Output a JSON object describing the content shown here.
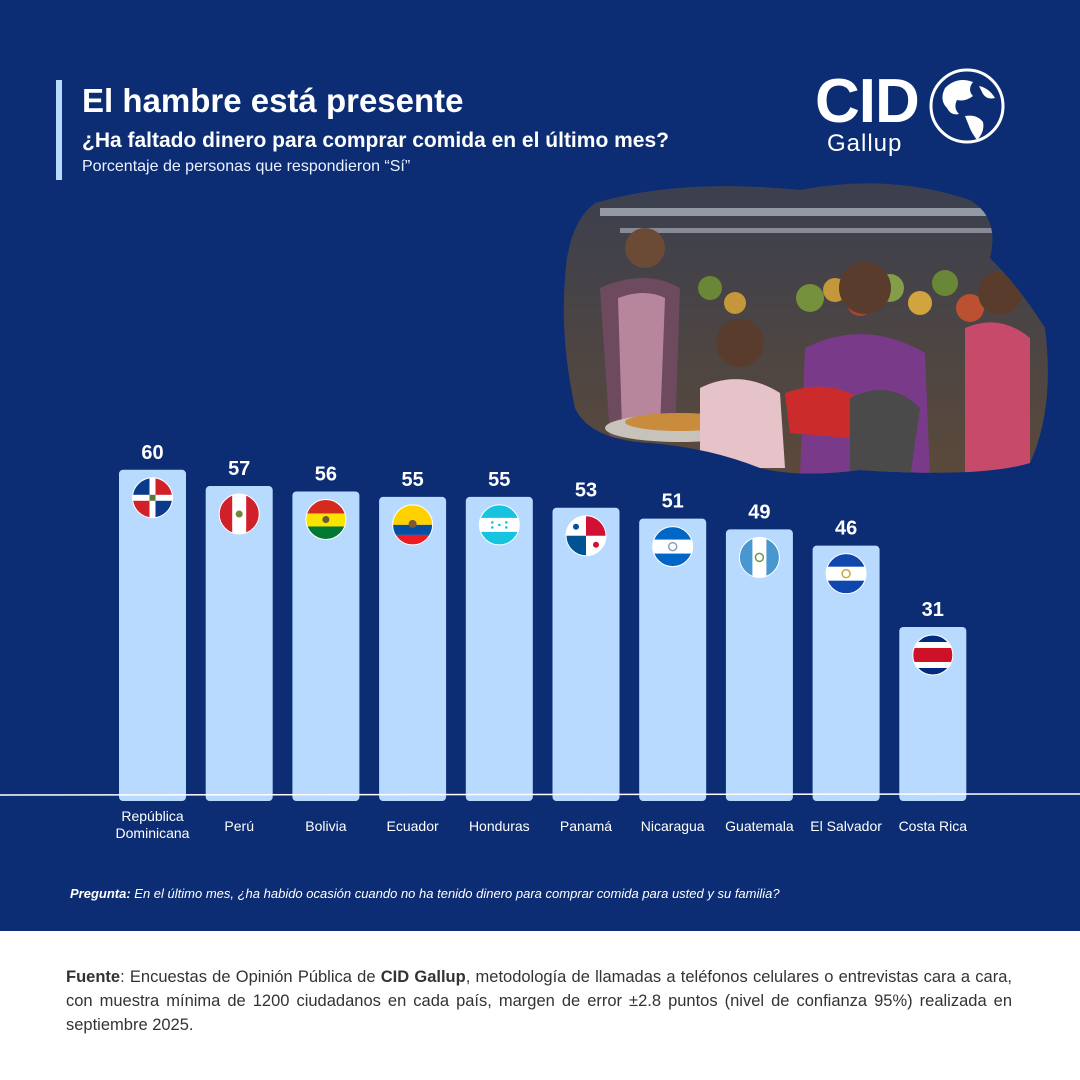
{
  "title": "El hambre está presente",
  "subtitle": "¿Ha faltado dinero para comprar comida en el último mes?",
  "note": "Porcentaje de personas que respondieron “Sí”",
  "logo": {
    "main": "CID",
    "sub": "Gallup"
  },
  "question": {
    "label": "Pregunta:",
    "text": "En el último mes, ¿ha habido ocasión cuando no ha tenido dinero para comprar comida para usted y su familia?"
  },
  "footer": {
    "label": "Fuente",
    "text_a": ": Encuestas de Opinión Pública de ",
    "brand": "CID Gallup",
    "text_b": ", metodología de llamadas a teléfonos celulares o entrevistas cara a cara, con muestra mínima de 1200 ciudadanos en cada país, margen de error ±2.8 puntos (nivel de confianza 95%) realizada en septiembre 2025."
  },
  "colors": {
    "background": "#0c2d74",
    "bar": "#b9daff",
    "axis": "#ffffff"
  },
  "chart_data": {
    "type": "bar",
    "title": "¿Ha faltado dinero para comprar comida en el último mes?",
    "ylabel": "Porcentaje de personas que respondieron “Sí”",
    "ylim": [
      0,
      60
    ],
    "categories": [
      "República Dominicana",
      "Perú",
      "Bolivia",
      "Ecuador",
      "Honduras",
      "Panamá",
      "Nicaragua",
      "Guatemala",
      "El Salvador",
      "Costa Rica"
    ],
    "category_lines": [
      [
        "República",
        "Dominicana"
      ],
      [
        "Perú"
      ],
      [
        "Bolivia"
      ],
      [
        "Ecuador"
      ],
      [
        "Honduras"
      ],
      [
        "Panamá"
      ],
      [
        "Nicaragua"
      ],
      [
        "Guatemala"
      ],
      [
        "El Salvador"
      ],
      [
        "Costa Rica"
      ]
    ],
    "values": [
      60,
      57,
      56,
      55,
      55,
      53,
      51,
      49,
      46,
      31
    ],
    "flags": [
      "dominican-republic",
      "peru",
      "bolivia",
      "ecuador",
      "honduras",
      "panama",
      "nicaragua",
      "guatemala",
      "el-salvador",
      "costa-rica"
    ]
  }
}
